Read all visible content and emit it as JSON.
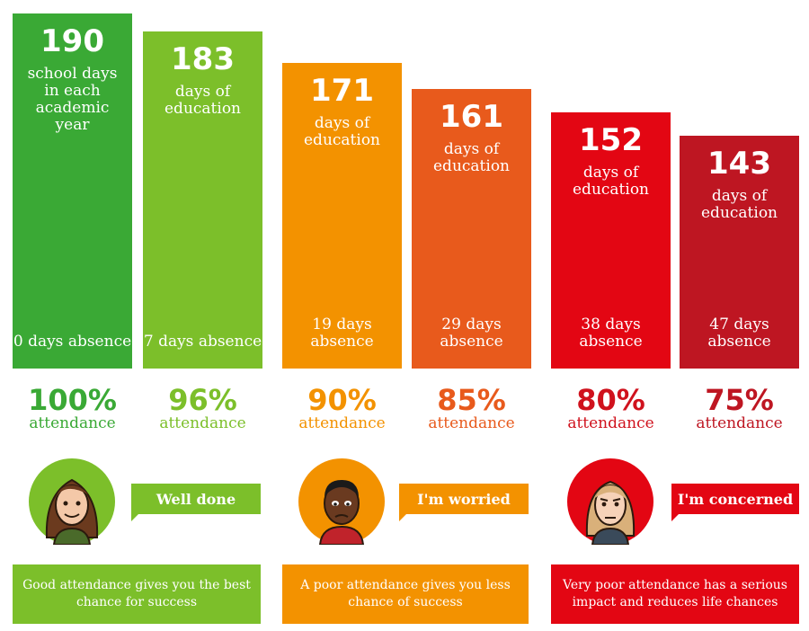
{
  "chart_data": {
    "type": "bar",
    "ylim": [
      0,
      190
    ],
    "series": [
      {
        "value": 190,
        "description": "school days in each academic year",
        "absence": "0 days absence",
        "attendance_pct": "100%",
        "attendance_label": "attendance",
        "color": "#3aa935",
        "text_color": "#3aa935"
      },
      {
        "value": 183,
        "description": "days of education",
        "absence": "7 days absence",
        "attendance_pct": "96%",
        "attendance_label": "attendance",
        "color": "#7cbf2a",
        "text_color": "#7cbf2a"
      },
      {
        "value": 171,
        "description": "days of education",
        "absence": "19 days absence",
        "attendance_pct": "90%",
        "attendance_label": "attendance",
        "color": "#f39200",
        "text_color": "#f39200"
      },
      {
        "value": 161,
        "description": "days of education",
        "absence": "29 days absence",
        "attendance_pct": "85%",
        "attendance_label": "attendance",
        "color": "#e85a1c",
        "text_color": "#e85a1c"
      },
      {
        "value": 152,
        "description": "days of education",
        "absence": "38 days absence",
        "attendance_pct": "80%",
        "attendance_label": "attendance",
        "color": "#e30613",
        "text_color": "#d0121d"
      },
      {
        "value": 143,
        "description": "days of education",
        "absence": "47 days absence",
        "attendance_pct": "75%",
        "attendance_label": "attendance",
        "color": "#be1622",
        "text_color": "#be1622"
      }
    ]
  },
  "groups": [
    {
      "avatar": "smiling-girl-avatar-icon",
      "avatar_bg": "#7cbf2a",
      "bubble": "Well done",
      "bubble_color": "#7cbf2a",
      "message": "Good attendance gives you the best chance for success",
      "message_color": "#7cbf2a"
    },
    {
      "avatar": "worried-boy-avatar-icon",
      "avatar_bg": "#f39200",
      "bubble": "I'm worried",
      "bubble_color": "#f39200",
      "message": "A poor attendance gives you less chance of success",
      "message_color": "#f39200"
    },
    {
      "avatar": "concerned-girl-avatar-icon",
      "avatar_bg": "#e30613",
      "bubble": "I'm concerned",
      "bubble_color": "#e30613",
      "message": "Very poor attendance has a serious impact and reduces life chances",
      "message_color": "#e30613"
    }
  ]
}
